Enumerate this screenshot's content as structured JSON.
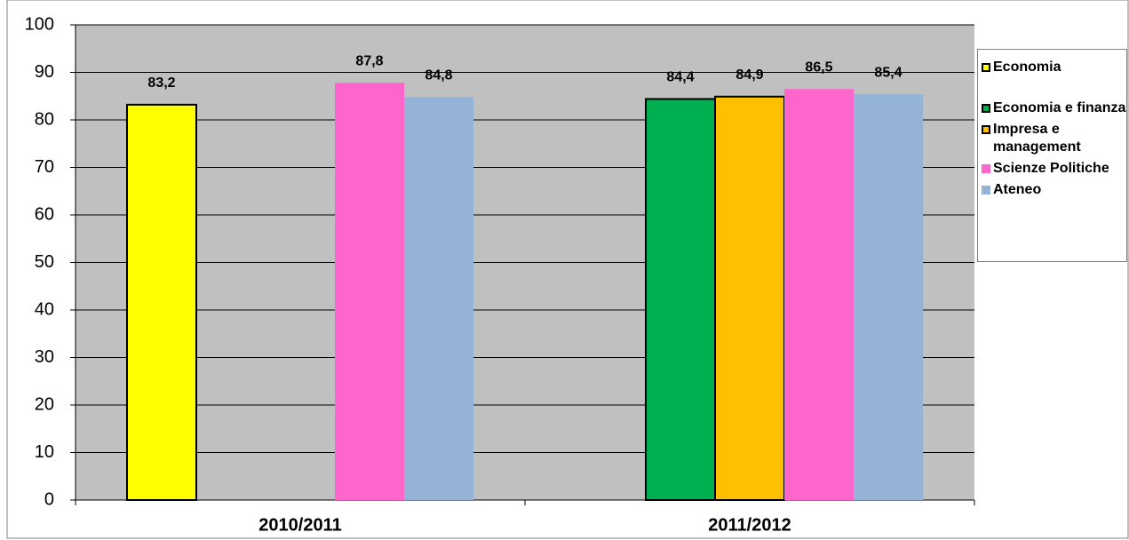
{
  "chart_data": {
    "type": "bar",
    "categories": [
      "2010/2011",
      "2011/2012"
    ],
    "series": [
      {
        "name": "Economia",
        "color": "#ffff00",
        "values": [
          83.2,
          null
        ],
        "value_labels": [
          "83,2",
          null
        ]
      },
      {
        "name": "Economia e finanza",
        "color": "#00b050",
        "values": [
          null,
          84.4
        ],
        "value_labels": [
          null,
          "84,4"
        ]
      },
      {
        "name": "Impresa e management",
        "color": "#ffc000",
        "values": [
          null,
          84.9
        ],
        "value_labels": [
          null,
          "84,9"
        ]
      },
      {
        "name": "Scienze Politiche",
        "color": "#ff66cc",
        "values": [
          87.8,
          86.5
        ],
        "value_labels": [
          "87,8",
          "86,5"
        ]
      },
      {
        "name": "Ateneo",
        "color": "#95b3d7",
        "values": [
          84.8,
          85.4
        ],
        "value_labels": [
          "84,8",
          "85,4"
        ]
      }
    ],
    "ylim": [
      0,
      100
    ],
    "yticks": [
      0,
      10,
      20,
      30,
      40,
      50,
      60,
      70,
      80,
      90,
      100
    ],
    "grid": true,
    "legend": "right"
  }
}
